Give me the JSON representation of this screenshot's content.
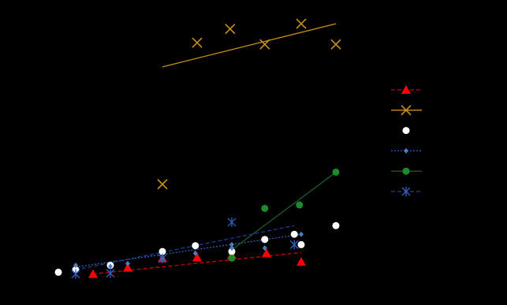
{
  "chart_data": {
    "type": "scatter",
    "title": "",
    "xlabel": "",
    "ylabel": "",
    "xlim": [
      0,
      9.5
    ],
    "ylim": [
      0,
      7.9
    ],
    "grid": false,
    "legend_position": "right",
    "series": [
      {
        "marker": "triangle",
        "color": "#ff0000",
        "line_style": "dashed",
        "line_color": "#cc0000",
        "points": [
          [
            1,
            0.1
          ],
          [
            2,
            0.28
          ],
          [
            3,
            0.55
          ],
          [
            4,
            0.58
          ],
          [
            5,
            0.65
          ],
          [
            6,
            0.7
          ],
          [
            7,
            0.45
          ]
        ],
        "trend": [
          [
            1,
            0.1
          ],
          [
            7,
            0.72
          ]
        ]
      },
      {
        "marker": "x",
        "color": "#c8901e",
        "line_style": "solid",
        "line_color": "#c8901e",
        "points": [
          [
            3,
            2.7
          ],
          [
            4,
            6.8
          ],
          [
            4.95,
            7.2
          ],
          [
            5.95,
            6.75
          ],
          [
            7,
            7.35
          ],
          [
            8,
            6.75
          ]
        ],
        "trend": [
          [
            3,
            6.1
          ],
          [
            8,
            7.35
          ]
        ]
      },
      {
        "marker": "circle",
        "color": "#ffffff",
        "line_style": "none",
        "line_color": "",
        "points": [
          [
            0,
            0.15
          ],
          [
            0.5,
            0.22
          ],
          [
            1.5,
            0.35
          ],
          [
            3,
            0.75
          ],
          [
            3.95,
            0.92
          ],
          [
            5,
            0.75
          ],
          [
            5.95,
            1.1
          ],
          [
            6.8,
            1.25
          ],
          [
            7,
            0.95
          ],
          [
            8,
            1.5
          ]
        ],
        "trend": []
      },
      {
        "marker": "diamond",
        "color": "#4a7ec0",
        "line_style": "dotted",
        "line_color": "#2f5fbf",
        "points": [
          [
            0.5,
            0.35
          ],
          [
            1.5,
            0.32
          ],
          [
            2,
            0.4
          ],
          [
            3,
            0.55
          ],
          [
            3.95,
            0.7
          ],
          [
            5,
            0.95
          ],
          [
            5,
            0.85
          ],
          [
            5.95,
            0.85
          ],
          [
            7,
            1.25
          ]
        ],
        "trend": [
          [
            0.5,
            0.3
          ],
          [
            7,
            1.25
          ]
        ]
      },
      {
        "marker": "circle",
        "color": "#1e8a2e",
        "line_style": "solid",
        "line_color": "#1a5a2a",
        "points": [
          [
            5,
            0.56
          ],
          [
            5.95,
            2.0
          ],
          [
            6.95,
            2.1
          ],
          [
            8,
            3.05
          ]
        ],
        "trend": [
          [
            5,
            0.8
          ],
          [
            8,
            3.05
          ]
        ]
      },
      {
        "marker": "asterisk",
        "color": "#2f5fbf",
        "line_style": "dashed",
        "line_color": "#1e3c8c",
        "points": [
          [
            0.5,
            0.1
          ],
          [
            1.5,
            0.12
          ],
          [
            3,
            0.55
          ],
          [
            5,
            1.6
          ],
          [
            6.8,
            0.95
          ]
        ],
        "trend": [
          [
            0.5,
            0.22
          ],
          [
            6.8,
            1.5
          ]
        ]
      }
    ]
  }
}
